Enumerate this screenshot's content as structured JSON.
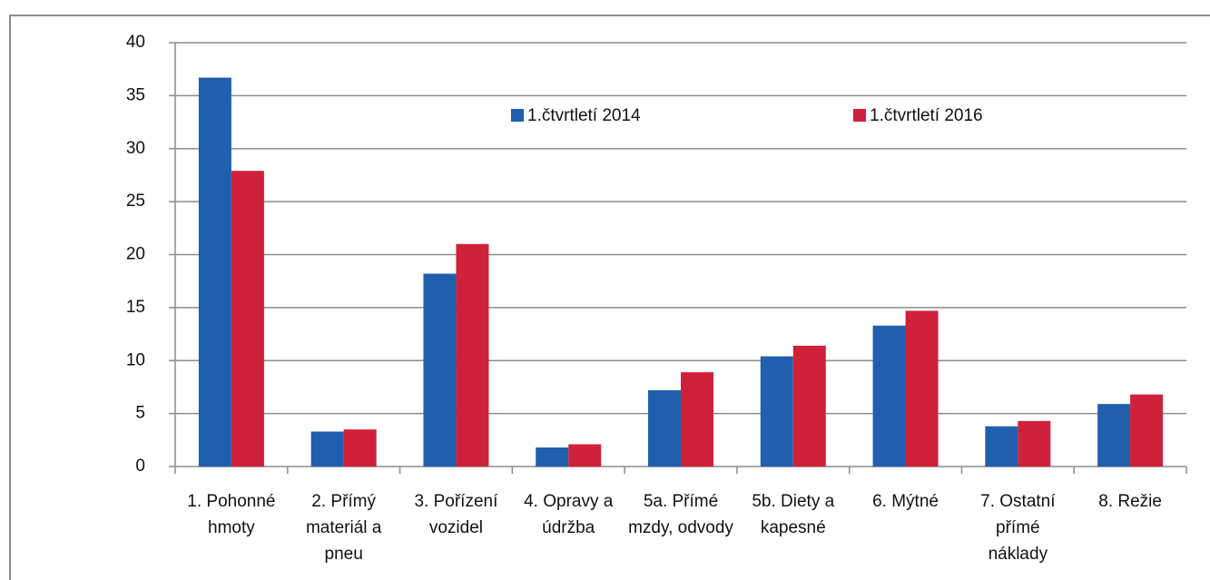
{
  "chart_data": {
    "type": "bar",
    "categories": [
      "1. Pohonné hmoty",
      "2. Přímý materiál a pneu",
      "3. Pořízení vozidel",
      "4. Opravy a údržba",
      "5a. Přímé mzdy, odvody",
      "5b. Diety a kapesné",
      "6. Mýtné",
      "7. Ostatní přímé náklady",
      "8. Režie"
    ],
    "series": [
      {
        "name": "1.čtvrtletí 2014",
        "color": "#1f5fae",
        "values": [
          36.7,
          3.3,
          18.2,
          1.8,
          7.2,
          10.4,
          13.3,
          3.8,
          5.9
        ]
      },
      {
        "name": "1.čtvrtletí 2016",
        "color": "#d0213a",
        "values": [
          27.9,
          3.5,
          21.0,
          2.1,
          8.9,
          11.4,
          14.7,
          4.3,
          6.8
        ]
      }
    ],
    "ylim": [
      0,
      40
    ],
    "yticks": [
      0,
      5,
      10,
      15,
      20,
      25,
      30,
      35,
      40
    ],
    "grid": true,
    "legend": "top"
  }
}
